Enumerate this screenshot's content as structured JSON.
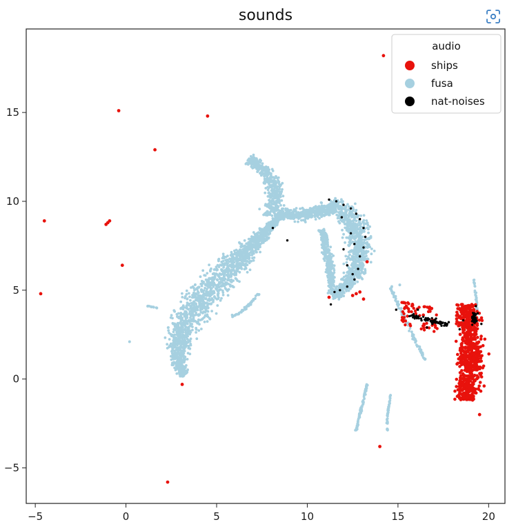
{
  "chart_data": {
    "type": "scatter",
    "title": "sounds",
    "xlabel": "",
    "ylabel": "",
    "xlim": [
      -5.5,
      20.9
    ],
    "ylim": [
      -7.0,
      19.7
    ],
    "xticks": [
      -5,
      0,
      5,
      10,
      15,
      20
    ],
    "yticks": [
      -5,
      0,
      5,
      10,
      15
    ],
    "grid": false,
    "legend": {
      "title": "audio",
      "placement": "top-right"
    },
    "series": [
      {
        "name": "ships",
        "color": "#e8120c",
        "points": [
          [
            -0.4,
            15.1
          ],
          [
            4.5,
            14.8
          ],
          [
            14.2,
            18.2
          ],
          [
            1.6,
            12.9
          ],
          [
            -4.5,
            8.9
          ],
          [
            -1.0,
            8.8
          ],
          [
            -0.9,
            8.9
          ],
          [
            -1.1,
            8.7
          ],
          [
            -0.2,
            6.4
          ],
          [
            -4.7,
            4.8
          ],
          [
            3.1,
            -0.3
          ],
          [
            2.3,
            -5.8
          ],
          [
            14.0,
            -3.8
          ],
          [
            12.7,
            4.8
          ],
          [
            12.5,
            4.7
          ],
          [
            12.9,
            4.9
          ],
          [
            11.2,
            4.6
          ],
          [
            13.1,
            4.5
          ],
          [
            15.3,
            4.3
          ],
          [
            15.8,
            4.2
          ],
          [
            16.4,
            3.6
          ],
          [
            15.6,
            3.8
          ],
          [
            19.5,
            -2.0
          ],
          [
            13.3,
            6.6
          ]
        ],
        "clusters": [
          {
            "x_range": [
              17.8,
              19.9
            ],
            "y_range": [
              -1.2,
              4.2
            ],
            "count": 700
          },
          {
            "x_range": [
              15.2,
              17.2
            ],
            "y_range": [
              2.8,
              4.4
            ],
            "count": 60
          }
        ]
      },
      {
        "name": "fusa",
        "color": "#a6d0e0",
        "structures": [
          {
            "shape": "banana-crescent",
            "from": [
              2.6,
              0.2
            ],
            "to": [
              7.5,
              9.5
            ]
          },
          {
            "shape": "eagle-head",
            "from": [
              6.6,
              12.5
            ],
            "to": [
              13.4,
              4.6
            ]
          },
          {
            "shape": "curved-segment",
            "from": [
              5.7,
              3.4
            ],
            "to": [
              7.4,
              4.8
            ]
          },
          {
            "shape": "strand",
            "from": [
              12.7,
              -3.0
            ],
            "to": [
              13.3,
              -0.2
            ]
          },
          {
            "shape": "strand",
            "from": [
              14.4,
              -3.0
            ],
            "to": [
              14.6,
              -0.9
            ]
          },
          {
            "shape": "curve",
            "from": [
              14.6,
              5.2
            ],
            "to": [
              16.6,
              1.0
            ]
          },
          {
            "shape": "strand",
            "from": [
              19.2,
              5.6
            ],
            "to": [
              19.4,
              3.5
            ]
          }
        ],
        "points": [
          [
            1.2,
            4.1
          ],
          [
            1.7,
            4.0
          ],
          [
            0.2,
            2.1
          ],
          [
            15.1,
            5.3
          ],
          [
            15.9,
            3.7
          ]
        ]
      },
      {
        "name": "nat-noises",
        "color": "#000000",
        "points": [
          [
            11.2,
            10.1
          ],
          [
            11.6,
            10.0
          ],
          [
            12.0,
            9.8
          ],
          [
            12.4,
            9.6
          ],
          [
            12.7,
            9.3
          ],
          [
            12.9,
            9.0
          ],
          [
            13.1,
            8.5
          ],
          [
            13.2,
            8.0
          ],
          [
            13.1,
            7.4
          ],
          [
            12.9,
            6.9
          ],
          [
            12.8,
            6.2
          ],
          [
            12.6,
            5.6
          ],
          [
            12.2,
            5.2
          ],
          [
            11.8,
            5.0
          ],
          [
            11.5,
            4.9
          ],
          [
            11.3,
            4.2
          ],
          [
            12.4,
            8.2
          ],
          [
            12.6,
            7.6
          ],
          [
            12.2,
            6.4
          ],
          [
            12.5,
            5.9
          ],
          [
            8.1,
            8.5
          ],
          [
            8.9,
            7.8
          ],
          [
            15.8,
            3.6
          ],
          [
            16.3,
            3.3
          ],
          [
            16.9,
            3.1
          ],
          [
            17.4,
            3.0
          ],
          [
            17.8,
            3.2
          ],
          [
            18.6,
            3.3
          ],
          [
            19.1,
            3.5
          ],
          [
            19.4,
            3.7
          ],
          [
            19.3,
            4.1
          ],
          [
            19.6,
            3.1
          ],
          [
            18.4,
            2.8
          ],
          [
            16.1,
            3.9
          ],
          [
            14.9,
            3.9
          ],
          [
            16.6,
            2.9
          ],
          [
            17.1,
            3.4
          ],
          [
            11.9,
            9.1
          ],
          [
            12.0,
            7.3
          ]
        ]
      }
    ]
  },
  "lens_icon": "scan-icon"
}
